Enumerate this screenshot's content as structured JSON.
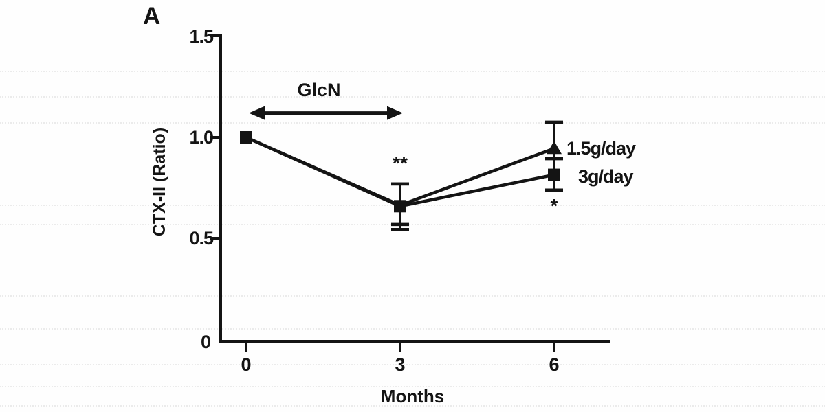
{
  "figure": {
    "panel_label": "A",
    "y_axis": {
      "tick_labels": [
        "1.5",
        "1.0",
        "0.5",
        "0"
      ]
    },
    "x_axis": {
      "tick_labels": [
        "0",
        "3",
        "6"
      ]
    }
  },
  "chart_data": {
    "type": "line",
    "title": "",
    "xlabel": "Months",
    "ylabel": "CTX-II  (Ratio)",
    "x": [
      0,
      3,
      6
    ],
    "xlim": [
      0,
      7
    ],
    "ylim": [
      0,
      1.5
    ],
    "yticks": [
      0,
      0.5,
      1.0,
      1.5
    ],
    "grid": false,
    "marker_color": "#141414",
    "series": [
      {
        "name": "1.5g/day",
        "marker": "triangle",
        "point_markers": [
          "none",
          "none",
          "triangle"
        ],
        "values": [
          1.0,
          0.665,
          0.945
        ],
        "error_high": [
          0,
          0.105,
          0.13
        ],
        "error_low": [
          0,
          0.095,
          0.05
        ]
      },
      {
        "name": "3g/day",
        "marker": "square",
        "point_markers": [
          "square",
          "square",
          "square"
        ],
        "values": [
          1.0,
          0.66,
          0.815
        ],
        "error_high": [
          0,
          0.11,
          0.08
        ],
        "error_low": [
          0,
          0.115,
          0.075
        ]
      }
    ],
    "annotations": [
      {
        "text": "GlcN",
        "type": "double_arrow",
        "x_from": 0,
        "x_to": 3,
        "y": 1.12
      },
      {
        "text": "**",
        "type": "significance",
        "x": 3,
        "position": "above"
      },
      {
        "text": "*",
        "type": "significance",
        "x": 6,
        "position": "below"
      }
    ],
    "legend_position": "right-of-last-points"
  }
}
